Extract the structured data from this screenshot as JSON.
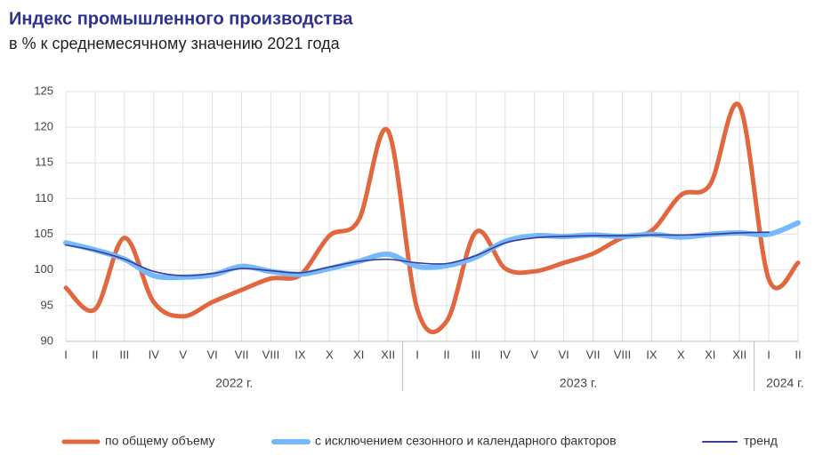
{
  "chart_data": {
    "type": "line",
    "title": "Индекс промышленного производства",
    "subtitle": "в % к среднемесячному значению 2021 года",
    "groups": [
      {
        "name": "2022 г.",
        "categories": [
          "I",
          "II",
          "III",
          "IV",
          "V",
          "VI",
          "VII",
          "VIII",
          "IX",
          "X",
          "XI",
          "XII"
        ]
      },
      {
        "name": "2023 г.",
        "categories": [
          "I",
          "II",
          "III",
          "IV",
          "V",
          "VI",
          "VII",
          "VIII",
          "IX",
          "X",
          "XI",
          "XII"
        ]
      },
      {
        "name": "2024 г.",
        "categories": [
          "I",
          "II"
        ]
      }
    ],
    "series": [
      {
        "name": "по общему объему",
        "color": "#e2673f",
        "width": 5,
        "values": [
          97.5,
          94.5,
          104.5,
          95.5,
          93.5,
          95.5,
          97.2,
          98.8,
          99.3,
          104.8,
          107,
          119.5,
          94.5,
          92.8,
          105.3,
          100.2,
          99.8,
          101,
          102.3,
          104.5,
          105.5,
          110.5,
          112,
          123,
          98.7,
          101
        ]
      },
      {
        "name": "с исключением сезонного и календарного факторов",
        "color": "#74b9fb",
        "width": 6,
        "values": [
          103.8,
          102.8,
          101.5,
          99.2,
          99,
          99.3,
          100.5,
          99.8,
          99.4,
          100.2,
          101.2,
          102.2,
          100.5,
          100.6,
          101.8,
          104,
          104.8,
          104.7,
          104.9,
          104.7,
          105,
          104.6,
          105,
          105.2,
          105,
          106.6
        ]
      },
      {
        "name": "тренд",
        "color": "#3b3b99",
        "width": 1.6,
        "values": [
          103.5,
          102.7,
          101.5,
          99.8,
          99.2,
          99.5,
          100.2,
          99.9,
          99.6,
          100.4,
          101.2,
          101.5,
          101,
          100.9,
          102,
          103.8,
          104.5,
          104.7,
          104.8,
          104.8,
          104.9,
          104.9,
          105,
          105.2,
          105.3,
          null
        ]
      }
    ],
    "ylim": [
      90,
      125
    ],
    "yticks": [
      90,
      95,
      100,
      105,
      110,
      115,
      120,
      125
    ],
    "grid": true
  }
}
